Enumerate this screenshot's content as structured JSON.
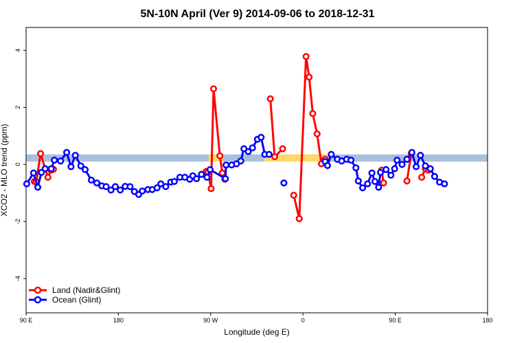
{
  "chart_data": {
    "type": "line",
    "title": "5N-10N April (Ver 9)   2014-09-06 to 2018-12-31",
    "xlabel": "Longitude (deg E)",
    "ylabel": "XCO2 - MLO trend (ppm)",
    "xlim": [
      90,
      540
    ],
    "ylim": [
      -5.2,
      4.8
    ],
    "x_ticks": [
      {
        "value": 90,
        "label": "90 E"
      },
      {
        "value": 180,
        "label": "180"
      },
      {
        "value": 270,
        "label": "90 W"
      },
      {
        "value": 360,
        "label": "0"
      },
      {
        "value": 450,
        "label": "90 E"
      },
      {
        "value": 540,
        "label": "180"
      }
    ],
    "y_ticks": [
      -4,
      -2,
      0,
      2,
      4
    ],
    "band": {
      "y_min": 0.1,
      "y_max": 0.35,
      "color": "#a9bfdc",
      "highlight_color": "#ffd966"
    },
    "legend_position": "bottom-left",
    "series": [
      {
        "name": "Land (Nadir&Glint)",
        "color": "#ff0000",
        "segments": [
          [
            [
              98.1,
              -0.6
            ],
            [
              99.9,
              -0.62
            ],
            [
              104.1,
              0.38
            ],
            [
              111.3,
              -0.45
            ],
            [
              114.3,
              -0.2
            ],
            [
              116.7,
              -0.17
            ]
          ],
          [
            [
              265.6,
              -0.25
            ],
            [
              267.4,
              -0.27
            ],
            [
              270.4,
              -0.85
            ],
            [
              272.8,
              2.65
            ],
            [
              279.0,
              0.3
            ],
            [
              281.4,
              -0.3
            ],
            [
              283.8,
              -0.52
            ]
          ],
          [
            [
              328.2,
              2.3
            ],
            [
              332.4,
              0.27
            ],
            [
              340.2,
              0.55
            ]
          ],
          [
            [
              351.0,
              -1.08
            ],
            [
              356.4,
              -1.9
            ],
            [
              363.0,
              3.78
            ],
            [
              366.0,
              3.06
            ],
            [
              369.6,
              1.78
            ],
            [
              373.8,
              1.07
            ],
            [
              378.0,
              0.02
            ],
            [
              381.6,
              0.18
            ]
          ],
          [
            [
              436.8,
              -0.2
            ],
            [
              438.6,
              -0.65
            ]
          ],
          [
            [
              461.4,
              -0.58
            ],
            [
              465.6,
              0.38
            ]
          ],
          [
            [
              475.8,
              -0.45
            ],
            [
              479.4,
              -0.15
            ],
            [
              482.4,
              -0.2
            ]
          ]
        ]
      },
      {
        "name": "Ocean (Glint)",
        "color": "#0000ff",
        "segments": [
          [
            [
              90.6,
              -0.68
            ],
            [
              97.2,
              -0.3
            ],
            [
              101.4,
              -0.8
            ],
            [
              105.0,
              -0.28
            ],
            [
              108.6,
              -0.15
            ],
            [
              114.6,
              -0.15
            ],
            [
              117.6,
              0.15
            ],
            [
              123.6,
              0.12
            ],
            [
              129.6,
              0.42
            ],
            [
              133.8,
              -0.08
            ],
            [
              138.0,
              0.32
            ],
            [
              143.4,
              -0.05
            ],
            [
              147.6,
              -0.18
            ],
            [
              153.6,
              -0.55
            ],
            [
              159.0,
              -0.65
            ],
            [
              163.8,
              -0.75
            ],
            [
              168.0,
              -0.78
            ],
            [
              172.8,
              -0.9
            ],
            [
              177.0,
              -0.78
            ],
            [
              181.8,
              -0.9
            ],
            [
              186.6,
              -0.77
            ],
            [
              191.4,
              -0.78
            ],
            [
              195.6,
              -0.95
            ],
            [
              199.8,
              -1.05
            ],
            [
              203.4,
              -0.93
            ],
            [
              208.8,
              -0.88
            ],
            [
              213.0,
              -0.88
            ],
            [
              217.8,
              -0.82
            ],
            [
              221.4,
              -0.68
            ],
            [
              226.2,
              -0.78
            ],
            [
              231.0,
              -0.62
            ],
            [
              234.6,
              -0.6
            ],
            [
              240.0,
              -0.45
            ],
            [
              244.8,
              -0.45
            ],
            [
              249.6,
              -0.52
            ],
            [
              252.6,
              -0.4
            ],
            [
              256.2,
              -0.5
            ],
            [
              261.0,
              -0.35
            ],
            [
              266.4,
              -0.45
            ],
            [
              269.4,
              -0.18
            ],
            [
              284.4,
              -0.5
            ],
            [
              285.0,
              -0.02
            ],
            [
              290.4,
              -0.02
            ],
            [
              295.2,
              0.02
            ],
            [
              299.4,
              0.12
            ],
            [
              302.4,
              0.55
            ],
            [
              306.6,
              0.45
            ],
            [
              310.8,
              0.58
            ],
            [
              315.6,
              0.88
            ],
            [
              319.2,
              0.95
            ],
            [
              322.8,
              0.35
            ],
            [
              327.0,
              0.35
            ]
          ],
          [
            [
              341.4,
              -0.65
            ]
          ],
          [
            [
              381.6,
              0.1
            ],
            [
              384.0,
              -0.04
            ],
            [
              387.6,
              0.35
            ],
            [
              393.6,
              0.18
            ],
            [
              397.8,
              0.12
            ],
            [
              402.6,
              0.18
            ],
            [
              406.8,
              0.15
            ],
            [
              411.6,
              -0.12
            ],
            [
              414.0,
              -0.58
            ],
            [
              418.2,
              -0.82
            ],
            [
              423.0,
              -0.68
            ],
            [
              427.2,
              -0.3
            ],
            [
              430.2,
              -0.6
            ],
            [
              433.8,
              -0.8
            ],
            [
              435.6,
              -0.28
            ],
            [
              441.0,
              -0.18
            ],
            [
              445.8,
              -0.38
            ],
            [
              449.4,
              -0.15
            ],
            [
              451.8,
              0.15
            ],
            [
              456.6,
              0.0
            ],
            [
              461.4,
              0.18
            ],
            [
              466.2,
              0.42
            ],
            [
              470.4,
              -0.08
            ],
            [
              474.6,
              0.32
            ],
            [
              479.4,
              -0.05
            ],
            [
              484.2,
              -0.15
            ],
            [
              488.4,
              -0.42
            ],
            [
              493.2,
              -0.62
            ],
            [
              498.0,
              -0.68
            ]
          ]
        ]
      }
    ]
  }
}
